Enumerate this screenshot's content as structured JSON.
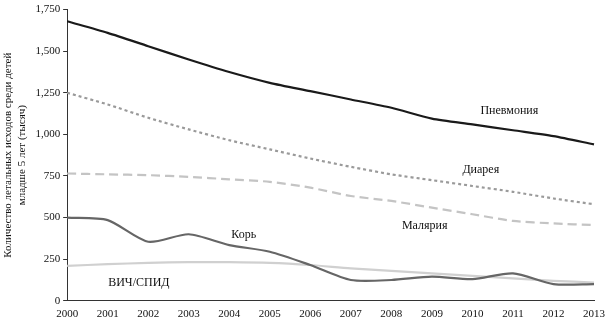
{
  "chart_data": {
    "type": "line",
    "y_label": [
      "Количество летальных исходов среди детей",
      "младше 5 лет (тысяч)"
    ],
    "categories": [
      "2000",
      "2001",
      "2002",
      "2003",
      "2004",
      "2005",
      "2006",
      "2007",
      "2008",
      "2009",
      "2010",
      "2011",
      "2012",
      "2013"
    ],
    "series": [
      {
        "name": "Пневмония",
        "color": "#1a1a1a",
        "line_style": "solid",
        "values": [
          1680,
          1610,
          1530,
          1450,
          1375,
          1310,
          1260,
          1210,
          1160,
          1095,
          1060,
          1025,
          990,
          940
        ]
      },
      {
        "name": "Диарея",
        "color": "#9a9a9a",
        "line_style": "dotted",
        "values": [
          1250,
          1180,
          1100,
          1030,
          965,
          910,
          855,
          805,
          760,
          725,
          690,
          655,
          615,
          580
        ]
      },
      {
        "name": "Малярия",
        "color": "#c4c4c4",
        "line_style": "dashed",
        "values": [
          765,
          760,
          755,
          745,
          730,
          715,
          680,
          630,
          600,
          560,
          520,
          480,
          465,
          455
        ]
      },
      {
        "name": "Корь",
        "color": "#666666",
        "line_style": "solid",
        "values": [
          500,
          485,
          355,
          400,
          335,
          295,
          215,
          125,
          125,
          145,
          130,
          165,
          100,
          100
        ]
      },
      {
        "name": "ВИЧ/СПИД",
        "color": "#d0d0d0",
        "line_style": "solid",
        "values": [
          210,
          220,
          228,
          232,
          232,
          228,
          215,
          195,
          180,
          165,
          150,
          135,
          120,
          110
        ]
      }
    ],
    "ylim": [
      0,
      1750
    ],
    "yticks": [
      0,
      250,
      500,
      750,
      {
        "value": 1000,
        "label": "1,000"
      },
      {
        "value": 1250,
        "label": "1,250"
      },
      {
        "value": 1500,
        "label": "1,500"
      },
      {
        "value": 1750,
        "label": "1,750"
      }
    ],
    "grid": false
  }
}
